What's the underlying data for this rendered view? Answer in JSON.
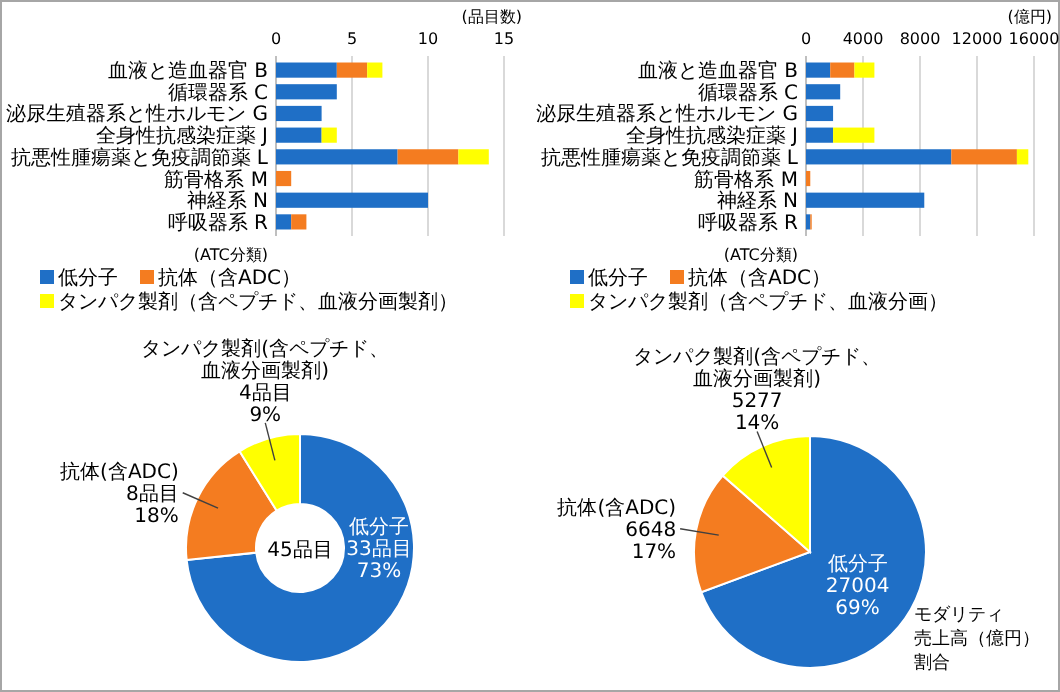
{
  "chart_data": [
    {
      "type": "bar",
      "orientation": "horizontal",
      "stacked": true,
      "xlabel": "(品目数)",
      "ylabel": "(ATC分類)",
      "categories": [
        "血液と造血器官 B",
        "循環器系 C",
        "泌尿生殖器系と性ホルモン G",
        "全身性抗感染症薬 J",
        "抗悪性腫瘍薬と免疫調節薬 L",
        "筋骨格系 M",
        "神経系 N",
        "呼吸器系 R"
      ],
      "xlim": [
        0,
        15
      ],
      "xticks": [
        0,
        5,
        10,
        15
      ],
      "grid": "x",
      "legend": "bottom",
      "series": [
        {
          "name": "低分子",
          "color": "#1f6fc6",
          "values": [
            4,
            4,
            3,
            3,
            8,
            0,
            10,
            1
          ]
        },
        {
          "name": "抗体（含ADC）",
          "color": "#f47c20",
          "values": [
            2,
            0,
            0,
            0,
            4,
            1,
            0,
            1
          ]
        },
        {
          "name": "タンパク製剤（含ペプチド、血液分画製剤）",
          "color": "#ffff00",
          "values": [
            1,
            0,
            0,
            1,
            2,
            0,
            0,
            0
          ]
        }
      ]
    },
    {
      "type": "bar",
      "orientation": "horizontal",
      "stacked": true,
      "xlabel": "(億円)",
      "ylabel": "(ATC分類)",
      "categories": [
        "血液と造血器官 B",
        "循環器系 C",
        "泌尿生殖器系と性ホルモン G",
        "全身性抗感染症薬 J",
        "抗悪性腫瘍薬と免疫調節薬 L",
        "筋骨格系 M",
        "神経系 N",
        "呼吸器系 R"
      ],
      "xlim": [
        0,
        16000
      ],
      "xticks": [
        0,
        4000,
        8000,
        12000,
        16000
      ],
      "grid": "x",
      "legend": "bottom",
      "series": [
        {
          "name": "低分子",
          "color": "#1f6fc6",
          "values": [
            1700,
            2400,
            1900,
            1900,
            10200,
            0,
            8300,
            300
          ]
        },
        {
          "name": "抗体（含ADC）",
          "color": "#f47c20",
          "values": [
            1700,
            0,
            0,
            0,
            4600,
            300,
            0,
            100
          ]
        },
        {
          "name": "タンパク製剤（含ペプチド、血液分画）",
          "color": "#ffff00",
          "values": [
            1400,
            0,
            0,
            2900,
            800,
            0,
            0,
            0
          ]
        }
      ]
    },
    {
      "type": "donut",
      "categories": [
        "低分子",
        "抗体(含ADC)",
        "タンパク製剤(含ペプチド、血液分画製剤)"
      ],
      "values": [
        33,
        8,
        4
      ],
      "colors": [
        "#1f6fc6",
        "#f47c20",
        "#ffff00"
      ],
      "value_labels": [
        "33品目\n73%",
        "8品目\n18%",
        "4品目\n9%"
      ],
      "annotations": [
        "45品目"
      ]
    },
    {
      "type": "pie",
      "categories": [
        "低分子",
        "抗体(含ADC)",
        "タンパク製剤(含ペプチド、血液分画製剤)"
      ],
      "values": [
        27004,
        6648,
        5277
      ],
      "colors": [
        "#1f6fc6",
        "#f47c20",
        "#ffff00"
      ],
      "value_labels": [
        "27004\n69%",
        "6648\n17%",
        "5277\n14%"
      ],
      "annotations": [
        "モダリティ",
        "売上高（億円）",
        "割合"
      ]
    }
  ]
}
